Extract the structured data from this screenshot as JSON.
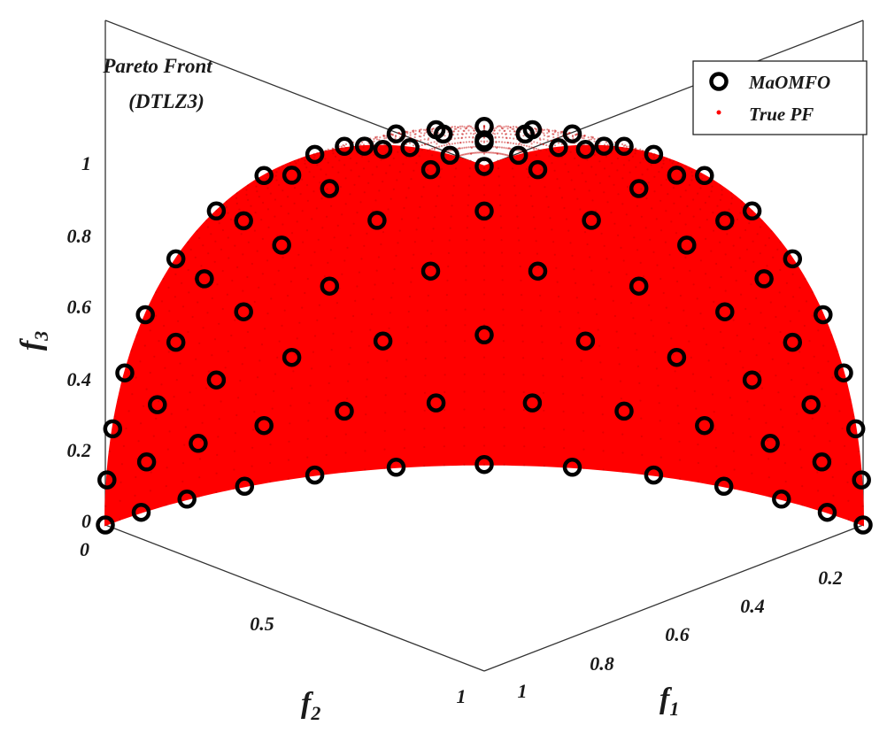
{
  "chart_data": {
    "type": "scatter",
    "projection": "3d",
    "title": "Pareto Front\n(DTLZ3)",
    "xlabel": "f1",
    "ylabel": "f2",
    "zlabel": "f3",
    "xlim": [
      0,
      1
    ],
    "ylim": [
      0,
      1
    ],
    "zlim": [
      0,
      1
    ],
    "x_ticks": [
      "0.2",
      "0.4",
      "0.6",
      "0.8",
      "1"
    ],
    "y_ticks": [
      "0",
      "0.5",
      "1"
    ],
    "z_ticks": [
      "0",
      "0.2",
      "0.4",
      "0.6",
      "0.8",
      "1"
    ],
    "legend_position": "top-right",
    "series": [
      {
        "name": "MaOMFO",
        "marker": "o",
        "color": "#000000",
        "description_of_points": "uniform reference-point spread on unit sphere octant",
        "divisions": 12
      },
      {
        "name": "True PF",
        "marker": ".",
        "color": "#ff0000",
        "surface": "x^2 + y^2 + z^2 = 1, x,y,z >= 0"
      }
    ]
  },
  "labels": {
    "title_line1": "Pareto Front",
    "title_line2": "(DTLZ3)",
    "f1": "f",
    "f1_sub": "1",
    "f2": "f",
    "f2_sub": "2",
    "f3": "f",
    "f3_sub": "3",
    "legend_1": "MaOMFO",
    "legend_2": "True PF"
  }
}
